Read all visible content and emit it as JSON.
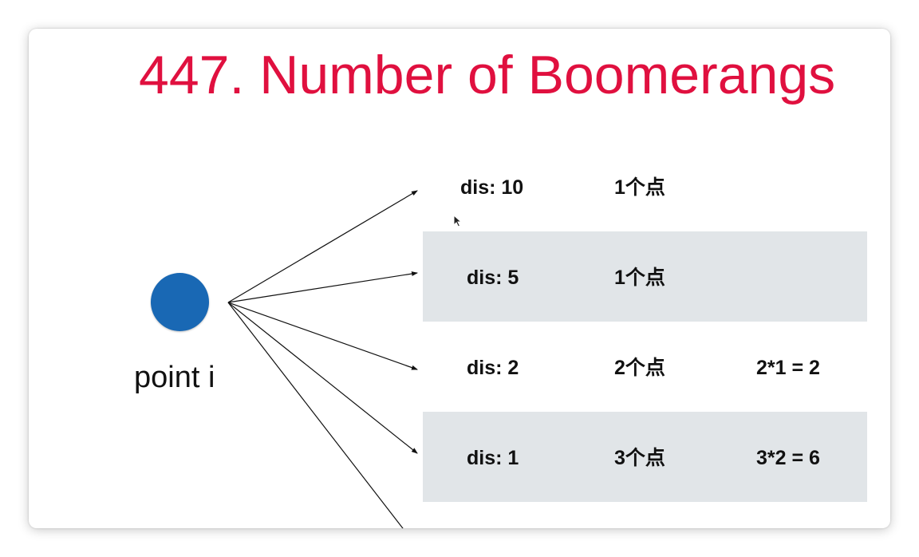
{
  "slide": {
    "title": "447. Number of Boomerangs",
    "point_label": "point i"
  },
  "rows": [
    {
      "dis": "dis: 10",
      "count": "1个点",
      "calc": ""
    },
    {
      "dis": "dis: 5",
      "count": "1个点",
      "calc": ""
    },
    {
      "dis": "dis: 2",
      "count": "2个点",
      "calc": "2*1 = 2"
    },
    {
      "dis": "dis: 1",
      "count": "3个点",
      "calc": "3*2 = 6"
    }
  ],
  "colors": {
    "title": "#e0103f",
    "point": "#1968b4",
    "band": "#e1e5e8"
  }
}
